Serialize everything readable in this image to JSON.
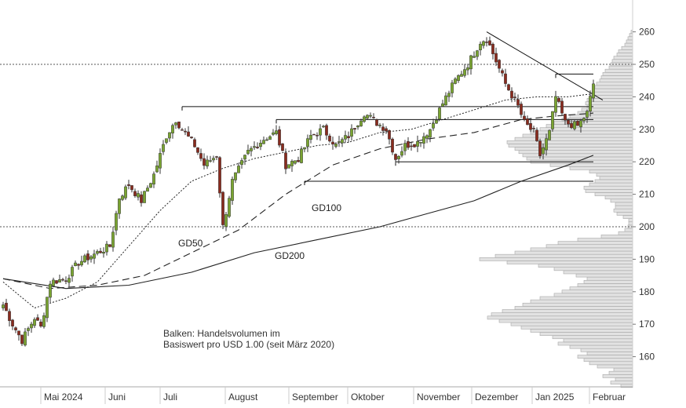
{
  "chart_data": {
    "type": "candlestick",
    "y_axis": {
      "min": 150,
      "max": 265,
      "ticks": [
        160,
        170,
        180,
        190,
        200,
        210,
        220,
        230,
        240,
        250,
        260
      ]
    },
    "x_axis": {
      "labels": [
        "Mai 2024",
        "Juni",
        "Juli",
        "August",
        "September",
        "Oktober",
        "November",
        "Dezember",
        "Jan 2025",
        "Februar"
      ]
    },
    "indicator_labels": {
      "gd50": "GD50",
      "gd100": "GD100",
      "gd200": "GD200"
    },
    "note_lines": [
      "Balken: Handelsvolumen im",
      "Basiswert pro USD 1.00 (seit März 2020)"
    ],
    "dotted_levels": [
      250,
      200
    ],
    "colors": {
      "up": "#7aa531",
      "down": "#8a2b1e",
      "wick": "#333333",
      "volume_fill": "#e2e2e2",
      "volume_stroke": "#a9a9a9",
      "line": "#222222"
    },
    "anchors": [
      {
        "t": 0,
        "c": 176
      },
      {
        "t": 3,
        "c": 170
      },
      {
        "t": 6,
        "c": 165
      },
      {
        "t": 10,
        "c": 172
      },
      {
        "t": 12,
        "c": 169
      },
      {
        "t": 15,
        "c": 183
      },
      {
        "t": 20,
        "c": 184
      },
      {
        "t": 24,
        "c": 189
      },
      {
        "t": 30,
        "c": 192
      },
      {
        "t": 34,
        "c": 194
      },
      {
        "t": 37,
        "c": 209
      },
      {
        "t": 40,
        "c": 213
      },
      {
        "t": 44,
        "c": 208
      },
      {
        "t": 48,
        "c": 216
      },
      {
        "t": 52,
        "c": 228
      },
      {
        "t": 55,
        "c": 233
      },
      {
        "t": 57,
        "c": 230
      },
      {
        "t": 61,
        "c": 225
      },
      {
        "t": 64,
        "c": 219
      },
      {
        "t": 68,
        "c": 222
      },
      {
        "t": 70,
        "c": 200
      },
      {
        "t": 73,
        "c": 214
      },
      {
        "t": 78,
        "c": 223
      },
      {
        "t": 83,
        "c": 227
      },
      {
        "t": 87,
        "c": 229
      },
      {
        "t": 90,
        "c": 219
      },
      {
        "t": 94,
        "c": 221
      },
      {
        "t": 98,
        "c": 228
      },
      {
        "t": 102,
        "c": 230
      },
      {
        "t": 106,
        "c": 225
      },
      {
        "t": 110,
        "c": 228
      },
      {
        "t": 115,
        "c": 235
      },
      {
        "t": 119,
        "c": 232
      },
      {
        "t": 122,
        "c": 230
      },
      {
        "t": 125,
        "c": 221
      },
      {
        "t": 128,
        "c": 225
      },
      {
        "t": 132,
        "c": 226
      },
      {
        "t": 136,
        "c": 230
      },
      {
        "t": 140,
        "c": 238
      },
      {
        "t": 144,
        "c": 245
      },
      {
        "t": 148,
        "c": 250
      },
      {
        "t": 152,
        "c": 257
      },
      {
        "t": 154,
        "c": 258
      },
      {
        "t": 157,
        "c": 251
      },
      {
        "t": 160,
        "c": 244
      },
      {
        "t": 164,
        "c": 237
      },
      {
        "t": 166,
        "c": 232
      },
      {
        "t": 169,
        "c": 229
      },
      {
        "t": 171,
        "c": 222
      },
      {
        "t": 174,
        "c": 229
      },
      {
        "t": 176,
        "c": 240
      },
      {
        "t": 179,
        "c": 232
      },
      {
        "t": 183,
        "c": 231
      },
      {
        "t": 186,
        "c": 235
      },
      {
        "t": 188,
        "c": 244
      }
    ],
    "moving_averages": {
      "gd50": [
        {
          "t": 0,
          "v": 183
        },
        {
          "t": 10,
          "v": 175
        },
        {
          "t": 20,
          "v": 178
        },
        {
          "t": 30,
          "v": 183
        },
        {
          "t": 40,
          "v": 194
        },
        {
          "t": 50,
          "v": 205
        },
        {
          "t": 60,
          "v": 214
        },
        {
          "t": 70,
          "v": 218
        },
        {
          "t": 80,
          "v": 221
        },
        {
          "t": 90,
          "v": 223
        },
        {
          "t": 100,
          "v": 225
        },
        {
          "t": 110,
          "v": 226
        },
        {
          "t": 120,
          "v": 229
        },
        {
          "t": 130,
          "v": 230
        },
        {
          "t": 140,
          "v": 233
        },
        {
          "t": 150,
          "v": 236
        },
        {
          "t": 160,
          "v": 239
        },
        {
          "t": 170,
          "v": 240
        },
        {
          "t": 180,
          "v": 240
        },
        {
          "t": 188,
          "v": 241
        }
      ],
      "gd100": [
        {
          "t": 0,
          "v": 184
        },
        {
          "t": 15,
          "v": 181
        },
        {
          "t": 30,
          "v": 182
        },
        {
          "t": 45,
          "v": 185
        },
        {
          "t": 60,
          "v": 192
        },
        {
          "t": 75,
          "v": 199
        },
        {
          "t": 90,
          "v": 210
        },
        {
          "t": 105,
          "v": 219
        },
        {
          "t": 120,
          "v": 224
        },
        {
          "t": 135,
          "v": 227
        },
        {
          "t": 150,
          "v": 229
        },
        {
          "t": 165,
          "v": 233
        },
        {
          "t": 175,
          "v": 234
        },
        {
          "t": 188,
          "v": 235
        }
      ],
      "gd200": [
        {
          "t": 0,
          "v": 184
        },
        {
          "t": 20,
          "v": 181
        },
        {
          "t": 40,
          "v": 182
        },
        {
          "t": 60,
          "v": 186
        },
        {
          "t": 80,
          "v": 192
        },
        {
          "t": 100,
          "v": 196
        },
        {
          "t": 120,
          "v": 200
        },
        {
          "t": 135,
          "v": 204
        },
        {
          "t": 150,
          "v": 208
        },
        {
          "t": 165,
          "v": 214
        },
        {
          "t": 180,
          "v": 219
        },
        {
          "t": 188,
          "v": 222
        }
      ]
    },
    "horizontal_levels": [
      {
        "y": 237,
        "t0": 57,
        "t1": 188
      },
      {
        "y": 233,
        "t0": 87,
        "t1": 188
      },
      {
        "y": 220,
        "t0": 125,
        "t1": 188
      },
      {
        "y": 214,
        "t0": 96,
        "t1": 188
      },
      {
        "y": 247,
        "t0": 176,
        "t1": 188
      }
    ],
    "trendline": {
      "t0": 154,
      "v0": 260,
      "t1": 188,
      "v1": 239
    },
    "volume_profile": [
      {
        "p": 151,
        "w": 15
      },
      {
        "p": 152,
        "w": 28
      },
      {
        "p": 153,
        "w": 22
      },
      {
        "p": 154,
        "w": 38
      },
      {
        "p": 155,
        "w": 30
      },
      {
        "p": 156,
        "w": 24
      },
      {
        "p": 157,
        "w": 45
      },
      {
        "p": 158,
        "w": 55
      },
      {
        "p": 159,
        "w": 62
      },
      {
        "p": 160,
        "w": 70
      },
      {
        "p": 161,
        "w": 58
      },
      {
        "p": 162,
        "w": 66
      },
      {
        "p": 163,
        "w": 80
      },
      {
        "p": 164,
        "w": 95
      },
      {
        "p": 165,
        "w": 88
      },
      {
        "p": 166,
        "w": 102
      },
      {
        "p": 167,
        "w": 118
      },
      {
        "p": 168,
        "w": 130
      },
      {
        "p": 169,
        "w": 142
      },
      {
        "p": 170,
        "w": 155
      },
      {
        "p": 171,
        "w": 170
      },
      {
        "p": 172,
        "w": 185
      },
      {
        "p": 173,
        "w": 180
      },
      {
        "p": 174,
        "w": 166
      },
      {
        "p": 175,
        "w": 150
      },
      {
        "p": 176,
        "w": 140
      },
      {
        "p": 177,
        "w": 130
      },
      {
        "p": 178,
        "w": 118
      },
      {
        "p": 179,
        "w": 100
      },
      {
        "p": 180,
        "w": 90
      },
      {
        "p": 181,
        "w": 80
      },
      {
        "p": 182,
        "w": 70
      },
      {
        "p": 183,
        "w": 62
      },
      {
        "p": 184,
        "w": 58
      },
      {
        "p": 185,
        "w": 72
      },
      {
        "p": 186,
        "w": 88
      },
      {
        "p": 187,
        "w": 100
      },
      {
        "p": 188,
        "w": 120
      },
      {
        "p": 189,
        "w": 160
      },
      {
        "p": 190,
        "w": 195
      },
      {
        "p": 191,
        "w": 175
      },
      {
        "p": 192,
        "w": 150
      },
      {
        "p": 193,
        "w": 130
      },
      {
        "p": 194,
        "w": 110
      },
      {
        "p": 195,
        "w": 95
      },
      {
        "p": 196,
        "w": 70
      },
      {
        "p": 197,
        "w": 40
      },
      {
        "p": 198,
        "w": 18
      },
      {
        "p": 199,
        "w": 10
      },
      {
        "p": 200,
        "w": 6
      },
      {
        "p": 201,
        "w": 5
      },
      {
        "p": 202,
        "w": 5
      },
      {
        "p": 203,
        "w": 12
      },
      {
        "p": 204,
        "w": 20
      },
      {
        "p": 205,
        "w": 24
      },
      {
        "p": 206,
        "w": 22
      },
      {
        "p": 207,
        "w": 22
      },
      {
        "p": 208,
        "w": 28
      },
      {
        "p": 209,
        "w": 35
      },
      {
        "p": 210,
        "w": 48
      },
      {
        "p": 211,
        "w": 60
      },
      {
        "p": 212,
        "w": 62
      },
      {
        "p": 213,
        "w": 55
      },
      {
        "p": 214,
        "w": 48
      },
      {
        "p": 215,
        "w": 42
      },
      {
        "p": 216,
        "w": 46
      },
      {
        "p": 217,
        "w": 55
      },
      {
        "p": 218,
        "w": 80
      },
      {
        "p": 219,
        "w": 105
      },
      {
        "p": 220,
        "w": 130
      },
      {
        "p": 221,
        "w": 135
      },
      {
        "p": 222,
        "w": 140
      },
      {
        "p": 223,
        "w": 145
      },
      {
        "p": 224,
        "w": 150
      },
      {
        "p": 225,
        "w": 158
      },
      {
        "p": 226,
        "w": 160
      },
      {
        "p": 227,
        "w": 150
      },
      {
        "p": 228,
        "w": 140
      },
      {
        "p": 229,
        "w": 130
      },
      {
        "p": 230,
        "w": 118
      },
      {
        "p": 231,
        "w": 110
      },
      {
        "p": 232,
        "w": 100
      },
      {
        "p": 233,
        "w": 90
      },
      {
        "p": 234,
        "w": 80
      },
      {
        "p": 235,
        "w": 70
      },
      {
        "p": 236,
        "w": 65
      },
      {
        "p": 237,
        "w": 58
      },
      {
        "p": 238,
        "w": 60
      },
      {
        "p": 239,
        "w": 58
      },
      {
        "p": 240,
        "w": 55
      },
      {
        "p": 241,
        "w": 52
      },
      {
        "p": 242,
        "w": 50
      },
      {
        "p": 243,
        "w": 48
      },
      {
        "p": 244,
        "w": 46
      },
      {
        "p": 245,
        "w": 42
      },
      {
        "p": 246,
        "w": 40
      },
      {
        "p": 247,
        "w": 38
      },
      {
        "p": 248,
        "w": 35
      },
      {
        "p": 249,
        "w": 30
      },
      {
        "p": 250,
        "w": 28
      },
      {
        "p": 251,
        "w": 26
      },
      {
        "p": 252,
        "w": 24
      },
      {
        "p": 253,
        "w": 20
      },
      {
        "p": 254,
        "w": 18
      },
      {
        "p": 255,
        "w": 14
      },
      {
        "p": 256,
        "w": 10
      },
      {
        "p": 257,
        "w": 8
      },
      {
        "p": 258,
        "w": 6
      },
      {
        "p": 259,
        "w": 4
      },
      {
        "p": 260,
        "w": 2
      }
    ]
  }
}
